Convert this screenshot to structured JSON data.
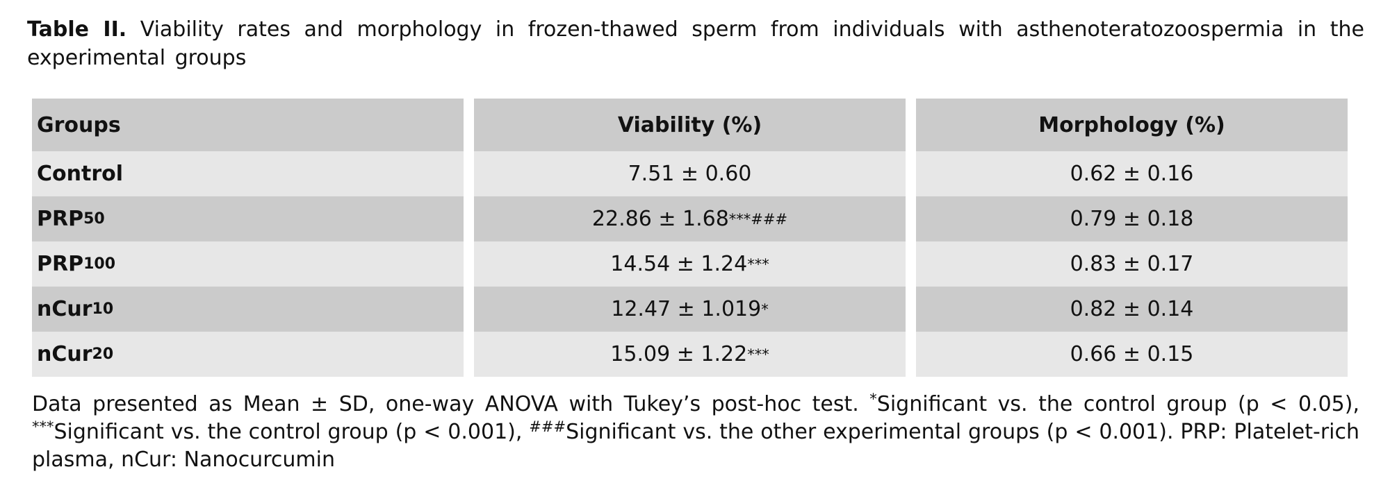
{
  "caption": {
    "label": "Table II.",
    "text": "Viability rates and morphology in frozen-thawed sperm from individuals with asthenoteratozoospermia in the experimental groups"
  },
  "table": {
    "headers": [
      "Groups",
      "Viability (%)",
      "Morphology (%)"
    ],
    "rows": [
      {
        "group": "Control",
        "group_sub": "",
        "viability": "7.51 ± 0.60",
        "viability_sup": "",
        "morphology": "0.62 ± 0.16"
      },
      {
        "group": "PRP",
        "group_sub": "50",
        "viability": "22.86 ± 1.68",
        "viability_sup": "***###",
        "morphology": "0.79 ± 0.18"
      },
      {
        "group": "PRP",
        "group_sub": "100",
        "viability": "14.54 ± 1.24",
        "viability_sup": "***",
        "morphology": "0.83 ± 0.17"
      },
      {
        "group": "nCur",
        "group_sub": "10",
        "viability": "12.47 ± 1.019",
        "viability_sup": "*",
        "morphology": "0.82 ± 0.14"
      },
      {
        "group": "nCur",
        "group_sub": "20",
        "viability": "15.09 ± 1.22",
        "viability_sup": "***",
        "morphology": "0.66 ± 0.15"
      }
    ]
  },
  "footnote": {
    "part1": "Data presented as Mean ± SD, one-way ANOVA with Tukey’s post-hoc test. ",
    "sup1": "*",
    "part2": "Significant vs. the control group (p < 0.05), ",
    "sup2": "***",
    "part3": "Significant vs. the control group (p < 0.001), ",
    "sup3": "###",
    "part4": "Significant vs. the other experimental groups (p < 0.001). PRP: Platelet-rich plasma, nCur: Nanocurcumin"
  },
  "colors": {
    "header_bg": "#cbcbcb",
    "row_light": "#e7e7e7",
    "row_dark": "#cbcbcb"
  }
}
